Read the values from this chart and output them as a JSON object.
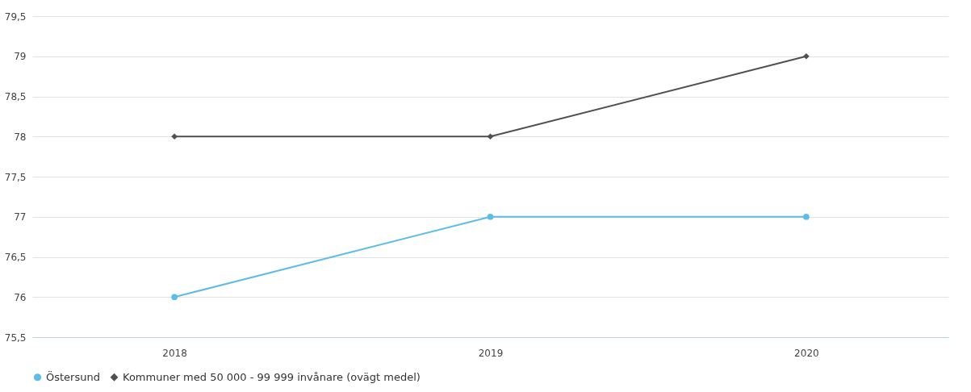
{
  "chart_data": {
    "type": "line",
    "categories": [
      "2018",
      "2019",
      "2020"
    ],
    "series": [
      {
        "name": "Östersund",
        "color": "#5cbde6",
        "marker": "circle",
        "values": [
          76,
          77,
          77
        ]
      },
      {
        "name": "Kommuner med 50 000 - 99 999 invånare (ovägt medel)",
        "color": "#505050",
        "marker": "diamond",
        "values": [
          78,
          78,
          79
        ]
      }
    ],
    "ylim": [
      75.5,
      79.5
    ],
    "yticks": [
      {
        "value": 75.5,
        "label": "75,5"
      },
      76,
      {
        "value": 76.5,
        "label": "76,5"
      },
      77,
      {
        "value": 77.5,
        "label": "77,5"
      },
      78,
      {
        "value": 78.5,
        "label": "78,5"
      },
      79,
      {
        "value": 79.5,
        "label": "79,5"
      }
    ],
    "grid": "y",
    "legend": "bottom",
    "line_style": "solid"
  }
}
